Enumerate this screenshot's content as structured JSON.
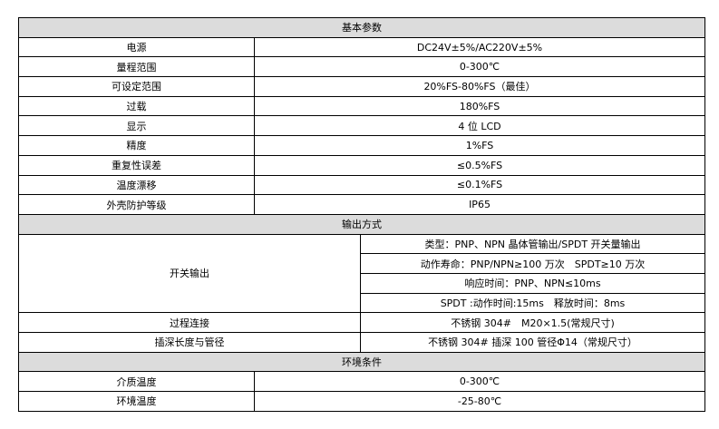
{
  "sections": {
    "basic": {
      "title": "基本参数",
      "rows": [
        {
          "label": "电源",
          "value": "DC24V±5%/AC220V±5%"
        },
        {
          "label": "量程范围",
          "value": "0-300℃"
        },
        {
          "label": "可设定范围",
          "value": "20%FS-80%FS（最佳）"
        },
        {
          "label": "过载",
          "value": "180%FS"
        },
        {
          "label": "显示",
          "value": "4 位 LCD"
        },
        {
          "label": "精度",
          "value": "1%FS"
        },
        {
          "label": "重复性误差",
          "value": "≤0.5%FS"
        },
        {
          "label": "温度漂移",
          "value": "≤0.1%FS"
        },
        {
          "label": "外壳防护等级",
          "value": "IP65"
        }
      ]
    },
    "output": {
      "title": "输出方式",
      "switch_label": "开关输出",
      "switch_values": [
        "类型：PNP、NPN 晶体管输出/SPDT 开关量输出",
        "动作寿命：PNP/NPN≥100 万次　SPDT≥10 万次",
        "响应时间：PNP、NPN≤10ms",
        "SPDT :动作时间:15ms　释放时间：8ms"
      ],
      "rows": [
        {
          "label": "过程连接",
          "value": "不锈钢 304#　M20×1.5(常规尺寸)"
        },
        {
          "label": "插深长度与管径",
          "value": "不锈钢 304# 插深 100 管径Φ14（常规尺寸）"
        }
      ]
    },
    "env": {
      "title": "环境条件",
      "rows": [
        {
          "label": "介质温度",
          "value": "0-300℃"
        },
        {
          "label": "环境温度",
          "value": "-25-80℃"
        }
      ]
    }
  }
}
